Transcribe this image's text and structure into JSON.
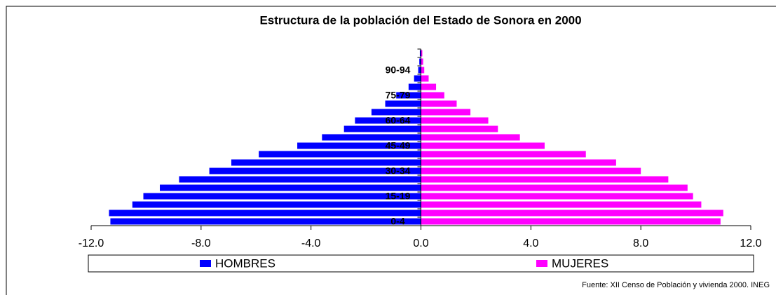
{
  "chart_data": {
    "type": "pyramid",
    "title": "Estructura de la población del Estado de Sonora en 2000",
    "source": "Fuente: XII Censo de Población y vivienda 2000. INEG",
    "categories": [
      "0-4",
      null,
      null,
      "15-19",
      null,
      null,
      "30-34",
      null,
      null,
      "45-49",
      null,
      null,
      "60-64",
      null,
      null,
      "75-79",
      null,
      null,
      "90-94",
      null,
      null
    ],
    "series": [
      {
        "name": "HOMBRES",
        "color": "#0000ff",
        "values": [
          -11.3,
          -11.35,
          -10.5,
          -10.1,
          -9.5,
          -8.8,
          -7.7,
          -6.9,
          -5.9,
          -4.5,
          -3.6,
          -2.8,
          -2.4,
          -1.8,
          -1.3,
          -0.9,
          -0.45,
          -0.25,
          -0.1,
          -0.06,
          -0.04
        ]
      },
      {
        "name": "MUJERES",
        "color": "#ff00ff",
        "values": [
          10.9,
          11.0,
          10.2,
          9.9,
          9.7,
          9.0,
          8.0,
          7.1,
          6.0,
          4.5,
          3.6,
          2.8,
          2.45,
          1.8,
          1.3,
          0.85,
          0.55,
          0.28,
          0.12,
          0.08,
          0.05
        ]
      }
    ],
    "xlim": [
      -12,
      12
    ],
    "xticks": [
      {
        "value": -12,
        "label": "-12.0"
      },
      {
        "value": -8,
        "label": "-8.0"
      },
      {
        "value": -4,
        "label": "-4.0"
      },
      {
        "value": 0,
        "label": "0.0"
      },
      {
        "value": 4,
        "label": "4.0"
      },
      {
        "value": 8,
        "label": "8.0"
      },
      {
        "value": 12,
        "label": "12.0"
      }
    ],
    "legend": "bottom"
  }
}
